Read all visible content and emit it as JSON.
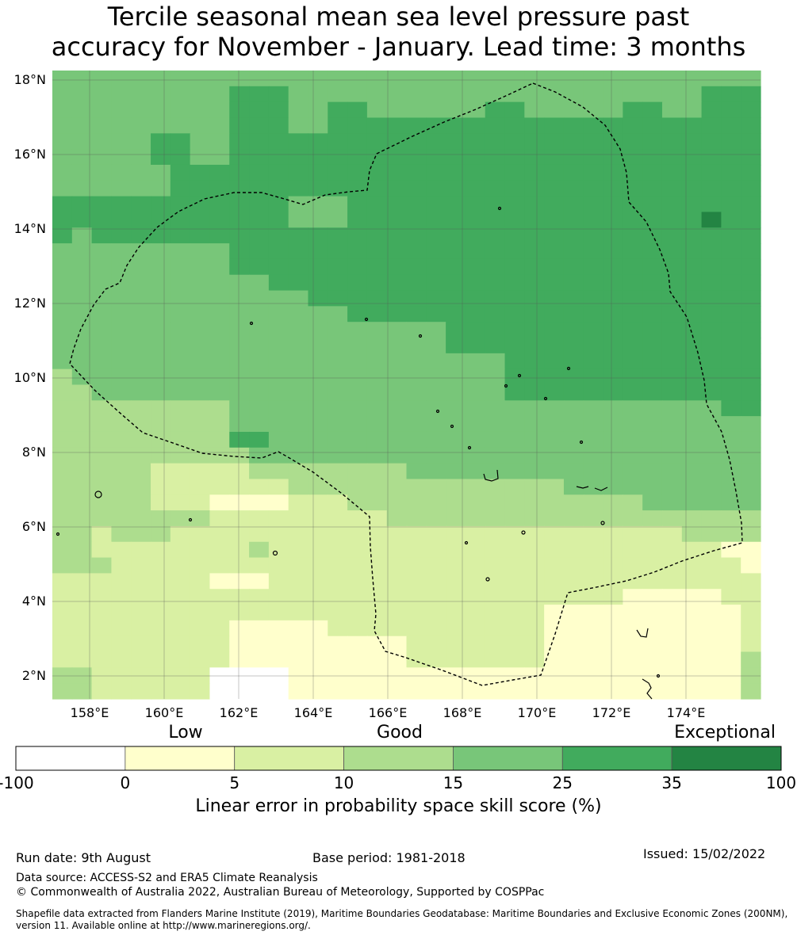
{
  "title_line1": "Tercile seasonal mean sea level pressure past",
  "title_line2": "accuracy for November - January. Lead time: 3 months",
  "map": {
    "lat_labels": [
      "18°N",
      "16°N",
      "14°N",
      "12°N",
      "10°N",
      "8°N",
      "6°N",
      "4°N",
      "2°N"
    ],
    "lon_labels": [
      "158°E",
      "160°E",
      "162°E",
      "164°E",
      "166°E",
      "168°E",
      "170°E",
      "172°E",
      "174°E"
    ],
    "cell_classes_legend": "0=<0 white,1=0-5,2=5-10,3=10-15,4=15-25,5=25-35,6=35-100",
    "grid_rows": [
      "444444444444444444444444444444444444",
      "444444444555444444444444444444444555",
      "444444444555445544444455444445544555",
      "444444444555445555555555555555555555",
      "444445544555555555555555555555555555",
      "444445544555555555555555555555555555",
      "444444555555555555555555555555555555",
      "444444555555555555555555555555555555",
      "555555555555444555555555555555555555",
      "555555555555444555555555555555555655",
      "545555555555555555555555555555555555",
      "444444444555555555555555555555555555",
      "444444444555555555555555555555555555",
      "444444444445555555555555555555555555",
      "444444444444455555555555555555555555",
      "444444444444444555555555555555555555",
      "444444444444444444445555555555555555",
      "444444444444444444445555555555555555",
      "444444444444444444444445555555555555",
      "344444444444444444444445555555555555",
      "334444444444444444444445555555555555",
      "333333333444444444444444444444444455",
      "333333333444444444444444444444444444",
      "333333333554444444444444444444444444",
      "333333333344444444444444444444444444",
      "333332222233333333444444444444444444",
      "333332222222333333333333334444444444",
      "333332221111222333333333333333444444",
      "333333332222222223333333333333333333",
      "332333222222222222222222222222223333",
      "332222222232222222222222222222222211",
      "333222222222222222222222222222222221",
      "222222221112222222222222222222222222",
      "222222222222222222222222222221111122",
      "222222222222222222222222211111111112",
      "222222222111112222222222211111111112",
      "222222222111111111222222211111111112",
      "222222222111111111222222211111111113",
      "332222220000111111111111111111111113",
      "332222220000111111111111111111111113"
    ]
  },
  "legend": {
    "category_labels": [
      "Low",
      "Good",
      "Exceptional"
    ],
    "bins": [
      {
        "from": "-100",
        "to": "0",
        "color": "#ffffff"
      },
      {
        "from": "0",
        "to": "5",
        "color": "#ffffcc"
      },
      {
        "from": "5",
        "to": "10",
        "color": "#d9f0a3"
      },
      {
        "from": "10",
        "to": "15",
        "color": "#addd8e"
      },
      {
        "from": "15",
        "to": "25",
        "color": "#78c679"
      },
      {
        "from": "25",
        "to": "35",
        "color": "#41ab5d"
      },
      {
        "from": "35",
        "to": "100",
        "color": "#238443"
      }
    ],
    "tick_labels": [
      "-100",
      "0",
      "5",
      "10",
      "15",
      "25",
      "35",
      "100"
    ],
    "colorbar_title": "Linear error in probability space skill score (%)"
  },
  "footer": {
    "run_date": "Run date: 9th August",
    "base_period": "Base period: 1981-2018",
    "issued": "Issued: 15/02/2022",
    "data_source": "Data source: ACCESS-S2 and ERA5 Climate Reanalysis",
    "copyright": "© Commonwealth of Australia 2022, Australian Bureau of Meteorology, Supported by COSPPac",
    "shapefile_line1": "Shapefile data extracted from Flanders Marine Institute (2019), Maritime Boundaries Geodatabase: Maritime Boundaries and Exclusive Economic Zones (200NM),",
    "shapefile_line2": "version 11. Available online at http://www.marineregions.org/."
  }
}
